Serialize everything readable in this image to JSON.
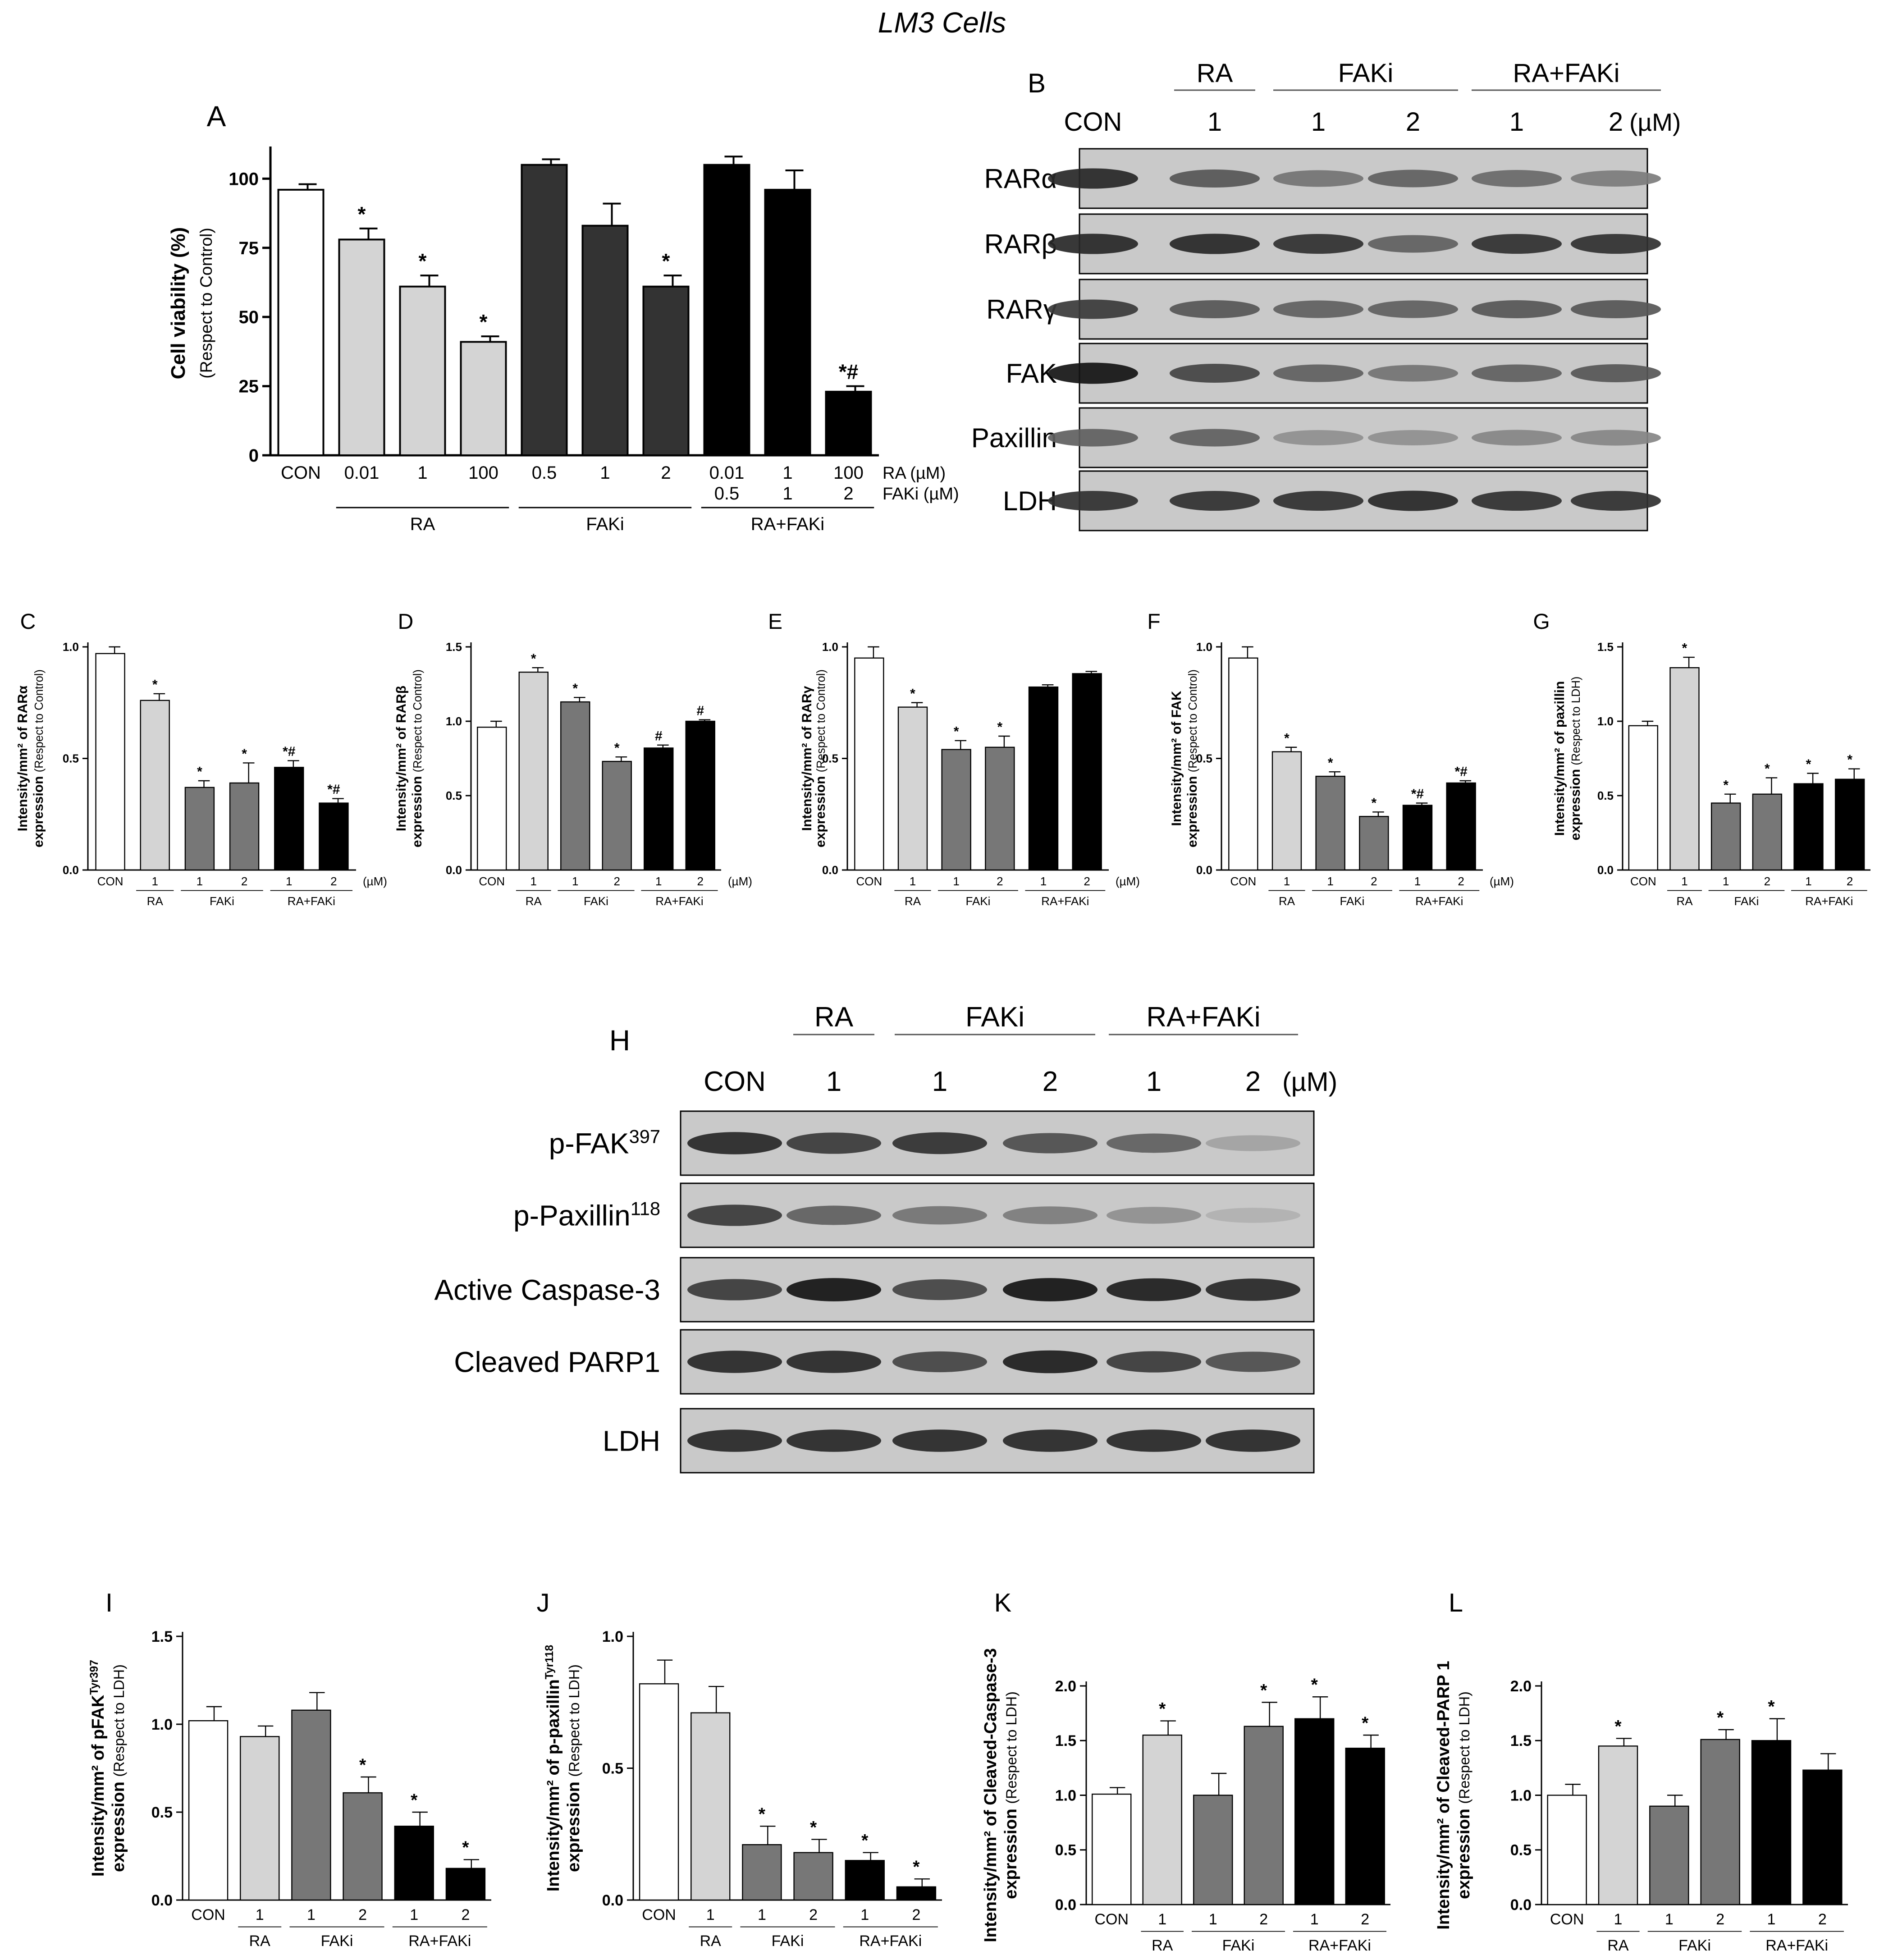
{
  "figure_title": "LM3 Cells",
  "colors": {
    "con": "#ffffff",
    "ra": "#d4d4d4",
    "faki": "#777777",
    "faki_dark": "#333333",
    "combo": "#000000"
  },
  "chart_data": [
    {
      "id": "A",
      "panel_label": "A",
      "type": "bar",
      "ylabel": "Cell viability (%)",
      "ylabel_sub": "(Respect to Control)",
      "ylim": [
        0,
        110
      ],
      "yticks": [
        0,
        25,
        50,
        75,
        100
      ],
      "bars": [
        {
          "value": 96,
          "err": 2,
          "sig": "",
          "color": "con"
        },
        {
          "value": 78,
          "err": 4,
          "sig": "*",
          "color": "ra"
        },
        {
          "value": 61,
          "err": 4,
          "sig": "*",
          "color": "ra"
        },
        {
          "value": 41,
          "err": 2,
          "sig": "*",
          "color": "ra"
        },
        {
          "value": 105,
          "err": 2,
          "sig": "",
          "color": "faki_dark"
        },
        {
          "value": 83,
          "err": 8,
          "sig": "",
          "color": "faki_dark"
        },
        {
          "value": 61,
          "err": 4,
          "sig": "*",
          "color": "faki_dark"
        },
        {
          "value": 105,
          "err": 3,
          "sig": "",
          "color": "combo"
        },
        {
          "value": 96,
          "err": 7,
          "sig": "",
          "color": "combo"
        },
        {
          "value": 23,
          "err": 2,
          "sig": "*#",
          "color": "combo"
        }
      ],
      "x_labels": [
        "CON",
        "0.01",
        "1",
        "100",
        "0.5",
        "1",
        "2",
        "0.01",
        "1",
        "100"
      ],
      "x_labels2": [
        "",
        "",
        "",
        "",
        "",
        "",
        "",
        "0.5",
        "1",
        "2"
      ],
      "row_labels": [
        "RA (µM)",
        "FAKi (µM)"
      ],
      "groups": [
        {
          "label": "RA",
          "from": 1,
          "to": 3
        },
        {
          "label": "FAKi",
          "from": 4,
          "to": 6
        },
        {
          "label": "RA+FAKi",
          "from": 7,
          "to": 9
        }
      ]
    },
    {
      "id": "C",
      "panel_label": "C",
      "type": "bar",
      "ylabel": "Intensity/mm² of RARα",
      "ylabel2": "expression",
      "ylabel_sub": "(Respect to Control)",
      "ylim": [
        0,
        1.0
      ],
      "yticks": [
        0.0,
        0.5,
        1.0
      ],
      "tick_labels": [
        "0.0",
        "0.5",
        "1.0"
      ],
      "bars": [
        {
          "value": 0.97,
          "err": 0.03,
          "sig": "",
          "color": "con"
        },
        {
          "value": 0.76,
          "err": 0.03,
          "sig": "*",
          "color": "ra"
        },
        {
          "value": 0.37,
          "err": 0.03,
          "sig": "*",
          "color": "faki"
        },
        {
          "value": 0.39,
          "err": 0.09,
          "sig": "*",
          "color": "faki"
        },
        {
          "value": 0.46,
          "err": 0.03,
          "sig": "*#",
          "color": "combo"
        },
        {
          "value": 0.3,
          "err": 0.02,
          "sig": "*#",
          "color": "combo"
        }
      ],
      "x_labels": [
        "CON",
        "1",
        "1",
        "2",
        "1",
        "2"
      ],
      "unit": "(µM)",
      "groups": [
        {
          "label": "RA",
          "from": 1,
          "to": 1
        },
        {
          "label": "FAKi",
          "from": 2,
          "to": 3
        },
        {
          "label": "RA+FAKi",
          "from": 4,
          "to": 5
        }
      ]
    },
    {
      "id": "D",
      "panel_label": "D",
      "type": "bar",
      "ylabel": "Intensity/mm² of RARβ",
      "ylabel2": "expression",
      "ylabel_sub": "(Respect to Control)",
      "ylim": [
        0,
        1.5
      ],
      "yticks": [
        0.0,
        0.5,
        1.0,
        1.5
      ],
      "tick_labels": [
        "0.0",
        "0.5",
        "1.0",
        "1.5"
      ],
      "bars": [
        {
          "value": 0.96,
          "err": 0.04,
          "sig": "",
          "color": "con"
        },
        {
          "value": 1.33,
          "err": 0.03,
          "sig": "*",
          "color": "ra"
        },
        {
          "value": 1.13,
          "err": 0.03,
          "sig": "*",
          "color": "faki"
        },
        {
          "value": 0.73,
          "err": 0.03,
          "sig": "*",
          "color": "faki"
        },
        {
          "value": 0.82,
          "err": 0.02,
          "sig": "#",
          "color": "combo"
        },
        {
          "value": 1.0,
          "err": 0.01,
          "sig": "#",
          "color": "combo"
        }
      ],
      "x_labels": [
        "CON",
        "1",
        "1",
        "2",
        "1",
        "2"
      ],
      "unit": "(µM)",
      "groups": [
        {
          "label": "RA",
          "from": 1,
          "to": 1
        },
        {
          "label": "FAKi",
          "from": 2,
          "to": 3
        },
        {
          "label": "RA+FAKi",
          "from": 4,
          "to": 5
        }
      ]
    },
    {
      "id": "E",
      "panel_label": "E",
      "type": "bar",
      "ylabel": "Intensity/mm² of RARγ",
      "ylabel2": "expression",
      "ylabel_sub": "(Respect to Control)",
      "ylim": [
        0,
        1.0
      ],
      "yticks": [
        0.0,
        0.5,
        1.0
      ],
      "tick_labels": [
        "0.0",
        "0.5",
        "1.0"
      ],
      "bars": [
        {
          "value": 0.95,
          "err": 0.05,
          "sig": "",
          "color": "con"
        },
        {
          "value": 0.73,
          "err": 0.02,
          "sig": "*",
          "color": "ra"
        },
        {
          "value": 0.54,
          "err": 0.04,
          "sig": "*",
          "color": "faki"
        },
        {
          "value": 0.55,
          "err": 0.05,
          "sig": "*",
          "color": "faki"
        },
        {
          "value": 0.82,
          "err": 0.01,
          "sig": "",
          "color": "combo"
        },
        {
          "value": 0.88,
          "err": 0.01,
          "sig": "",
          "color": "combo"
        }
      ],
      "x_labels": [
        "CON",
        "1",
        "1",
        "2",
        "1",
        "2"
      ],
      "unit": "(µM)",
      "groups": [
        {
          "label": "RA",
          "from": 1,
          "to": 1
        },
        {
          "label": "FAKi",
          "from": 2,
          "to": 3
        },
        {
          "label": "RA+FAKi",
          "from": 4,
          "to": 5
        }
      ]
    },
    {
      "id": "F",
      "panel_label": "F",
      "type": "bar",
      "ylabel": "Intensity/mm² of FAK",
      "ylabel2": "expression",
      "ylabel_sub": "(Respect to Control)",
      "ylim": [
        0,
        1.0
      ],
      "yticks": [
        0.0,
        0.5,
        1.0
      ],
      "tick_labels": [
        "0.0",
        "0.5",
        "1.0"
      ],
      "bars": [
        {
          "value": 0.95,
          "err": 0.05,
          "sig": "",
          "color": "con"
        },
        {
          "value": 0.53,
          "err": 0.02,
          "sig": "*",
          "color": "ra"
        },
        {
          "value": 0.42,
          "err": 0.02,
          "sig": "*",
          "color": "faki"
        },
        {
          "value": 0.24,
          "err": 0.02,
          "sig": "*",
          "color": "faki"
        },
        {
          "value": 0.29,
          "err": 0.01,
          "sig": "*#",
          "color": "combo"
        },
        {
          "value": 0.39,
          "err": 0.01,
          "sig": "*#",
          "color": "combo"
        }
      ],
      "x_labels": [
        "CON",
        "1",
        "1",
        "2",
        "1",
        "2"
      ],
      "unit": "(µM)",
      "groups": [
        {
          "label": "RA",
          "from": 1,
          "to": 1
        },
        {
          "label": "FAKi",
          "from": 2,
          "to": 3
        },
        {
          "label": "RA+FAKi",
          "from": 4,
          "to": 5
        }
      ]
    },
    {
      "id": "G",
      "panel_label": "G",
      "type": "bar",
      "ylabel": "Intensity/mm² of paxillin",
      "ylabel2": "expression",
      "ylabel_sub": "(Respect to LDH)",
      "ylim": [
        0,
        1.5
      ],
      "yticks": [
        0.0,
        0.5,
        1.0,
        1.5
      ],
      "tick_labels": [
        "0.0",
        "0.5",
        "1.0",
        "1.5"
      ],
      "bars": [
        {
          "value": 0.97,
          "err": 0.03,
          "sig": "",
          "color": "con"
        },
        {
          "value": 1.36,
          "err": 0.07,
          "sig": "*",
          "color": "ra"
        },
        {
          "value": 0.45,
          "err": 0.06,
          "sig": "*",
          "color": "faki"
        },
        {
          "value": 0.51,
          "err": 0.11,
          "sig": "*",
          "color": "faki"
        },
        {
          "value": 0.58,
          "err": 0.07,
          "sig": "*",
          "color": "combo"
        },
        {
          "value": 0.61,
          "err": 0.07,
          "sig": "*",
          "color": "combo"
        }
      ],
      "x_labels": [
        "CON",
        "1",
        "1",
        "2",
        "1",
        "2"
      ],
      "unit": "",
      "groups": [
        {
          "label": "RA",
          "from": 1,
          "to": 1
        },
        {
          "label": "FAKi",
          "from": 2,
          "to": 3
        },
        {
          "label": "RA+FAKi",
          "from": 4,
          "to": 5
        }
      ]
    },
    {
      "id": "I",
      "panel_label": "I",
      "type": "bar",
      "ylabel": "Intensity/mm² of pFAK",
      "ylabel_sup": "Tyr397",
      "ylabel2": "expression",
      "ylabel_sub": "(Respect to LDH)",
      "ylim": [
        0,
        1.5
      ],
      "yticks": [
        0.0,
        0.5,
        1.0,
        1.5
      ],
      "tick_labels": [
        "0.0",
        "0.5",
        "1.0",
        "1.5"
      ],
      "bars": [
        {
          "value": 1.02,
          "err": 0.08,
          "sig": "",
          "color": "con"
        },
        {
          "value": 0.93,
          "err": 0.06,
          "sig": "",
          "color": "ra"
        },
        {
          "value": 1.08,
          "err": 0.1,
          "sig": "",
          "color": "faki"
        },
        {
          "value": 0.61,
          "err": 0.09,
          "sig": "*",
          "color": "faki"
        },
        {
          "value": 0.42,
          "err": 0.08,
          "sig": "*",
          "color": "combo"
        },
        {
          "value": 0.18,
          "err": 0.05,
          "sig": "*",
          "color": "combo"
        }
      ],
      "x_labels": [
        "CON",
        "1",
        "1",
        "2",
        "1",
        "2"
      ],
      "unit": "",
      "groups": [
        {
          "label": "RA",
          "from": 1,
          "to": 1
        },
        {
          "label": "FAKi",
          "from": 2,
          "to": 3
        },
        {
          "label": "RA+FAKi",
          "from": 4,
          "to": 5
        }
      ]
    },
    {
      "id": "J",
      "panel_label": "J",
      "type": "bar",
      "ylabel": "Intensity/mm² of p-paxillin",
      "ylabel_sup": "Tyr118",
      "ylabel2": "expression",
      "ylabel_sub": "(Respect to LDH)",
      "ylim": [
        0,
        1.0
      ],
      "yticks": [
        0.0,
        0.5,
        1.0
      ],
      "tick_labels": [
        "0.0",
        "0.5",
        "1.0"
      ],
      "bars": [
        {
          "value": 0.82,
          "err": 0.09,
          "sig": "",
          "color": "con"
        },
        {
          "value": 0.71,
          "err": 0.1,
          "sig": "",
          "color": "ra"
        },
        {
          "value": 0.21,
          "err": 0.07,
          "sig": "*",
          "color": "faki"
        },
        {
          "value": 0.18,
          "err": 0.05,
          "sig": "*",
          "color": "faki"
        },
        {
          "value": 0.15,
          "err": 0.03,
          "sig": "*",
          "color": "combo"
        },
        {
          "value": 0.05,
          "err": 0.03,
          "sig": "*",
          "color": "combo"
        }
      ],
      "x_labels": [
        "CON",
        "1",
        "1",
        "2",
        "1",
        "2"
      ],
      "unit": "",
      "groups": [
        {
          "label": "RA",
          "from": 1,
          "to": 1
        },
        {
          "label": "FAKi",
          "from": 2,
          "to": 3
        },
        {
          "label": "RA+FAKi",
          "from": 4,
          "to": 5
        }
      ]
    },
    {
      "id": "K",
      "panel_label": "K",
      "type": "bar",
      "ylabel": "Intensity/mm² of Cleaved-Caspase-3",
      "ylabel2": "expression",
      "ylabel_sub": "(Respect to LDH)",
      "ylim": [
        0,
        2.0
      ],
      "yticks": [
        0.0,
        0.5,
        1.0,
        1.5,
        2.0
      ],
      "tick_labels": [
        "0.0",
        "0.5",
        "1.0",
        "1.5",
        "2.0"
      ],
      "bars": [
        {
          "value": 1.01,
          "err": 0.06,
          "sig": "",
          "color": "con"
        },
        {
          "value": 1.55,
          "err": 0.13,
          "sig": "*",
          "color": "ra"
        },
        {
          "value": 1.0,
          "err": 0.2,
          "sig": "",
          "color": "faki"
        },
        {
          "value": 1.63,
          "err": 0.22,
          "sig": "*",
          "color": "faki"
        },
        {
          "value": 1.7,
          "err": 0.2,
          "sig": "*",
          "color": "combo"
        },
        {
          "value": 1.43,
          "err": 0.12,
          "sig": "*",
          "color": "combo"
        }
      ],
      "x_labels": [
        "CON",
        "1",
        "1",
        "2",
        "1",
        "2"
      ],
      "unit": "",
      "groups": [
        {
          "label": "RA",
          "from": 1,
          "to": 1
        },
        {
          "label": "FAKi",
          "from": 2,
          "to": 3
        },
        {
          "label": "RA+FAKi",
          "from": 4,
          "to": 5
        }
      ]
    },
    {
      "id": "L",
      "panel_label": "L",
      "type": "bar",
      "ylabel": "Intensity/mm² of Cleaved-PARP 1",
      "ylabel2": "expression",
      "ylabel_sub": "(Respect to LDH)",
      "ylim": [
        0,
        2.0
      ],
      "yticks": [
        0.0,
        0.5,
        1.0,
        1.5,
        2.0
      ],
      "tick_labels": [
        "0.0",
        "0.5",
        "1.0",
        "1.5",
        "2.0"
      ],
      "bars": [
        {
          "value": 1.0,
          "err": 0.1,
          "sig": "",
          "color": "con"
        },
        {
          "value": 1.45,
          "err": 0.07,
          "sig": "*",
          "color": "ra"
        },
        {
          "value": 0.9,
          "err": 0.1,
          "sig": "",
          "color": "faki"
        },
        {
          "value": 1.51,
          "err": 0.09,
          "sig": "*",
          "color": "faki"
        },
        {
          "value": 1.5,
          "err": 0.2,
          "sig": "*",
          "color": "combo"
        },
        {
          "value": 1.23,
          "err": 0.15,
          "sig": "",
          "color": "combo"
        }
      ],
      "x_labels": [
        "CON",
        "1",
        "1",
        "2",
        "1",
        "2"
      ],
      "unit": "",
      "groups": [
        {
          "label": "RA",
          "from": 1,
          "to": 1
        },
        {
          "label": "FAKi",
          "from": 2,
          "to": 3
        },
        {
          "label": "RA+FAKi",
          "from": 4,
          "to": 5
        }
      ]
    }
  ],
  "blots": [
    {
      "id": "B",
      "panel_label": "B",
      "groups": [
        {
          "label": "RA",
          "from": 1,
          "to": 1
        },
        {
          "label": "FAKi",
          "from": 2,
          "to": 3
        },
        {
          "label": "RA+FAKi",
          "from": 4,
          "to": 5
        }
      ],
      "lanes": [
        "CON",
        "1",
        "1",
        "2",
        "1",
        "2"
      ],
      "unit": "(µM)",
      "rows": [
        {
          "label": "RARα",
          "intensity": [
            0.85,
            0.6,
            0.45,
            0.55,
            0.5,
            0.4
          ]
        },
        {
          "label": "RARβ",
          "intensity": [
            0.85,
            0.85,
            0.8,
            0.55,
            0.8,
            0.8
          ]
        },
        {
          "label": "RARγ",
          "intensity": [
            0.75,
            0.6,
            0.55,
            0.55,
            0.6,
            0.6
          ]
        },
        {
          "label": "FAK",
          "intensity": [
            0.95,
            0.7,
            0.55,
            0.45,
            0.55,
            0.6
          ]
        },
        {
          "label": "Paxillin",
          "intensity": [
            0.55,
            0.55,
            0.3,
            0.3,
            0.35,
            0.35
          ]
        },
        {
          "label": "LDH",
          "intensity": [
            0.8,
            0.8,
            0.8,
            0.85,
            0.8,
            0.8
          ]
        }
      ]
    },
    {
      "id": "H",
      "panel_label": "H",
      "groups": [
        {
          "label": "RA",
          "from": 1,
          "to": 1
        },
        {
          "label": "FAKi",
          "from": 2,
          "to": 3
        },
        {
          "label": "RA+FAKi",
          "from": 4,
          "to": 5
        }
      ],
      "lanes": [
        "CON",
        "1",
        "1",
        "2",
        "1",
        "2"
      ],
      "unit": "(µM)",
      "rows": [
        {
          "label": "p-FAK",
          "label_sup": "397",
          "intensity": [
            0.85,
            0.75,
            0.8,
            0.65,
            0.55,
            0.2
          ]
        },
        {
          "label": "p-Paxillin",
          "label_sup": "118",
          "intensity": [
            0.75,
            0.55,
            0.45,
            0.4,
            0.3,
            0.12
          ]
        },
        {
          "label": "Active Caspase-3",
          "label_sup": "",
          "intensity": [
            0.75,
            0.95,
            0.7,
            0.95,
            0.9,
            0.85
          ]
        },
        {
          "label": "Cleaved PARP1",
          "label_sup": "",
          "intensity": [
            0.85,
            0.85,
            0.7,
            0.9,
            0.75,
            0.65
          ]
        },
        {
          "label": "LDH",
          "label_sup": "",
          "intensity": [
            0.85,
            0.85,
            0.85,
            0.85,
            0.85,
            0.85
          ]
        }
      ]
    }
  ]
}
